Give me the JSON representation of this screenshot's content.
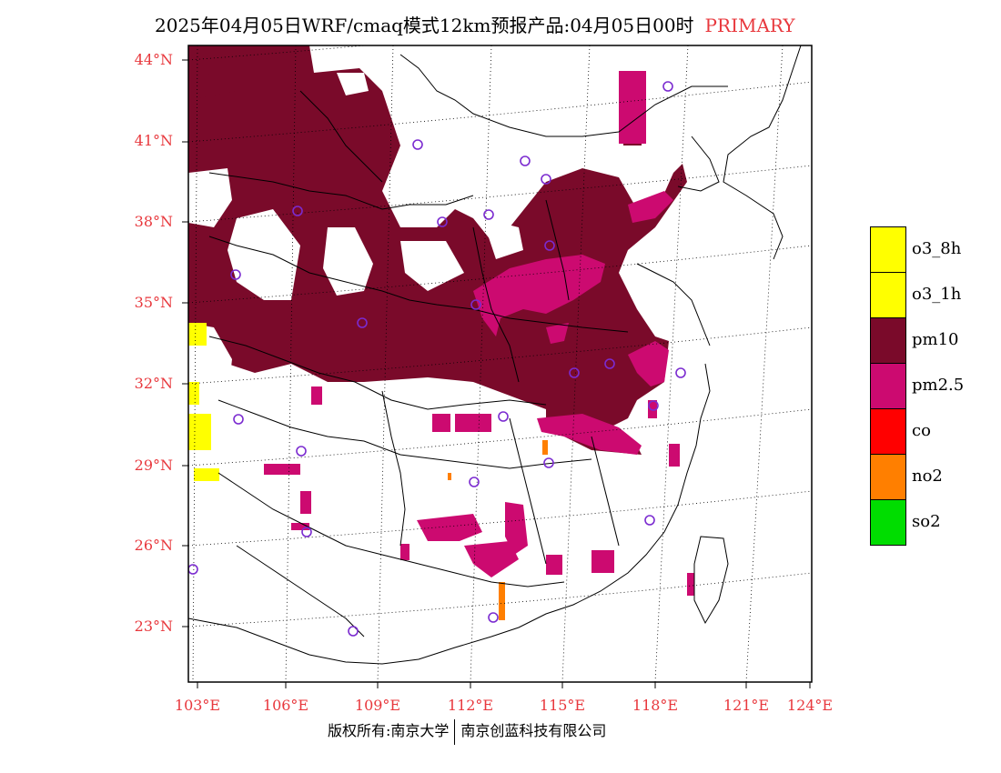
{
  "title": {
    "main": "2025年04月05日WRF/cmaq模式12km预报产品:04月05日00时",
    "tag": "PRIMARY"
  },
  "lat_labels": [
    "44°N",
    "41°N",
    "38°N",
    "35°N",
    "32°N",
    "29°N",
    "26°N",
    "23°N"
  ],
  "lon_labels": [
    "103°E",
    "106°E",
    "109°E",
    "112°E",
    "115°E",
    "118°E",
    "121°E",
    "124°E"
  ],
  "legend": [
    {
      "label": "o3_8h",
      "color": "#ffff00"
    },
    {
      "label": "o3_1h",
      "color": "#ffff00"
    },
    {
      "label": "pm10",
      "color": "#7a0a2a"
    },
    {
      "label": "pm2.5",
      "color": "#cc0a70"
    },
    {
      "label": "co",
      "color": "#ff0000"
    },
    {
      "label": "no2",
      "color": "#ff7f00"
    },
    {
      "label": "so2",
      "color": "#00dd00"
    }
  ],
  "footer": {
    "left": "版权所有:南京大学",
    "right": "南京创蓝科技有限公司"
  },
  "colors": {
    "label_red": "#e8383d",
    "station_circle": "#7b2bd0"
  }
}
